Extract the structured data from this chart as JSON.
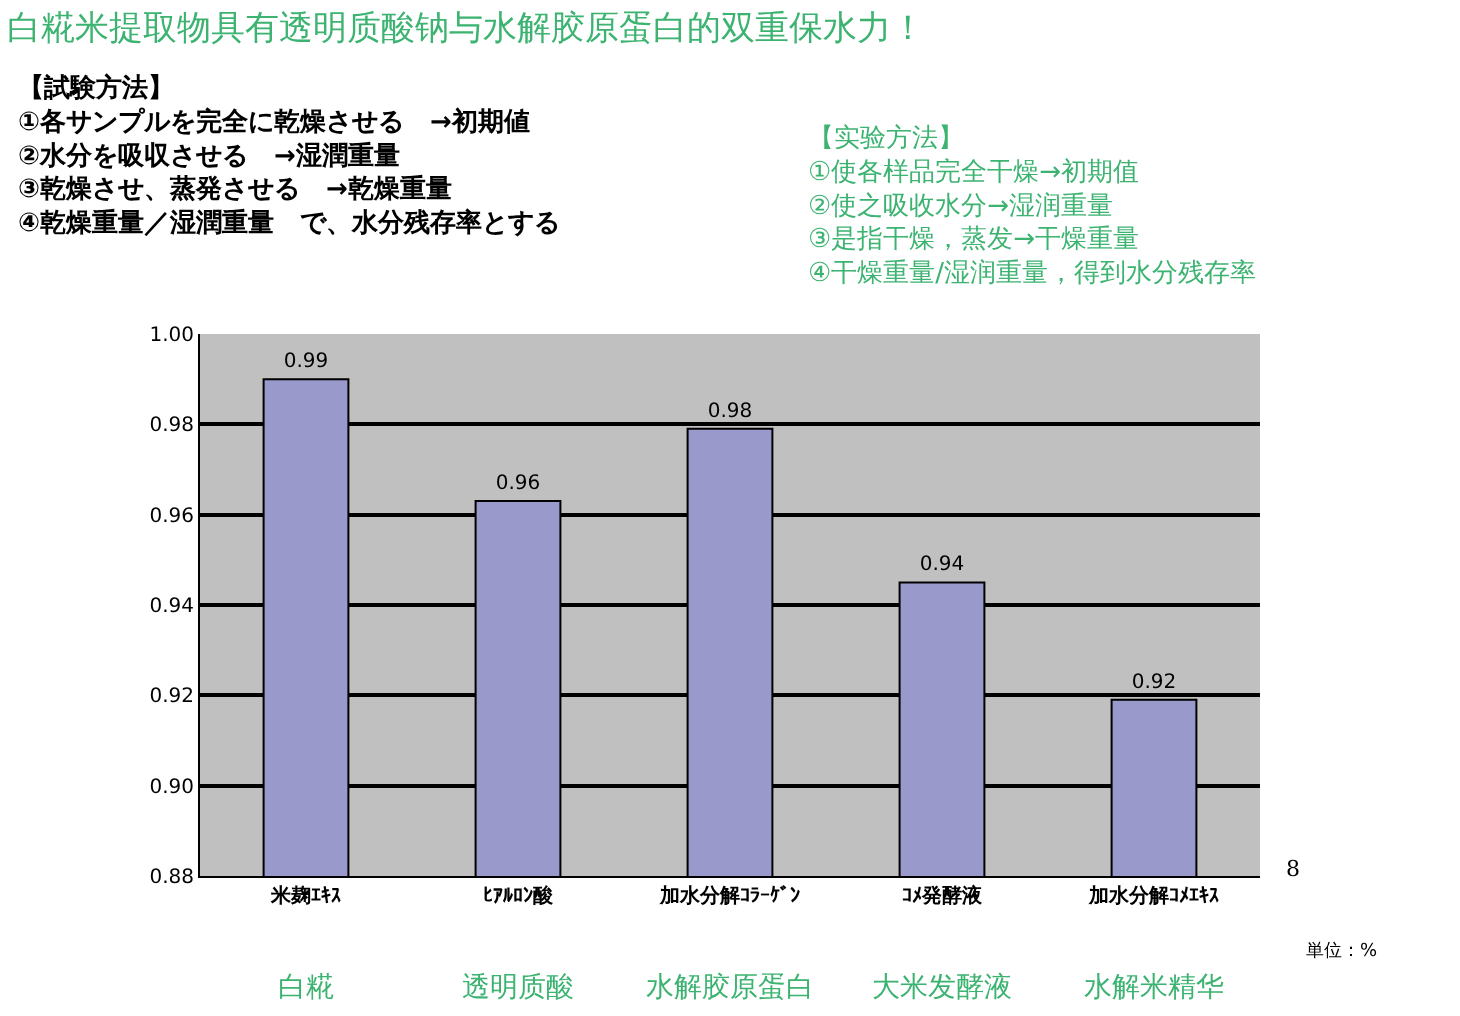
{
  "chart_data": {
    "type": "bar",
    "title": "白糀米提取物具有透明质酸钠与水解胶原蛋白的双重保水力！",
    "categories": [
      "米麹ｴｷｽ",
      "ﾋｱﾙﾛﾝ酸",
      "加水分解ｺﾗｰｹﾞﾝ",
      "ｺﾒ発酵液",
      "加水分解ｺﾒｴｷｽ"
    ],
    "values": [
      0.99,
      0.963,
      0.979,
      0.945,
      0.919
    ],
    "value_labels": [
      "0.99",
      "0.96",
      "0.98",
      "0.94",
      "0.92"
    ],
    "color": "#9999cc",
    "ylim": [
      0.88,
      1.0
    ],
    "yticks": [
      0.88,
      {
        "value": 0.9,
        "label": "0.90"
      },
      0.92,
      0.94,
      0.96,
      0.98,
      {
        "value": 1.0,
        "label": "1.00"
      }
    ],
    "grid": "y",
    "annotations": [
      "【試験方法】\n①各サンプルを完全に乾燥させる　→初期値\n②水分を吸収させる　→湿潤重量\n③乾燥させ、蒸発させる　→乾燥重量\n④乾燥重量／湿潤重量　で、水分残存率とする",
      "【实验方法】\n①使各样品完全干燥→初期值\n②使之吸收水分→湿润重量\n③是指干燥，蒸发→干燥重量\n④干燥重量/湿润重量，得到水分残存率",
      "8",
      "単位：%",
      "白糀",
      "透明质酸",
      "水解胶原蛋白",
      "大米发酵液",
      "水解米精华"
    ]
  }
}
